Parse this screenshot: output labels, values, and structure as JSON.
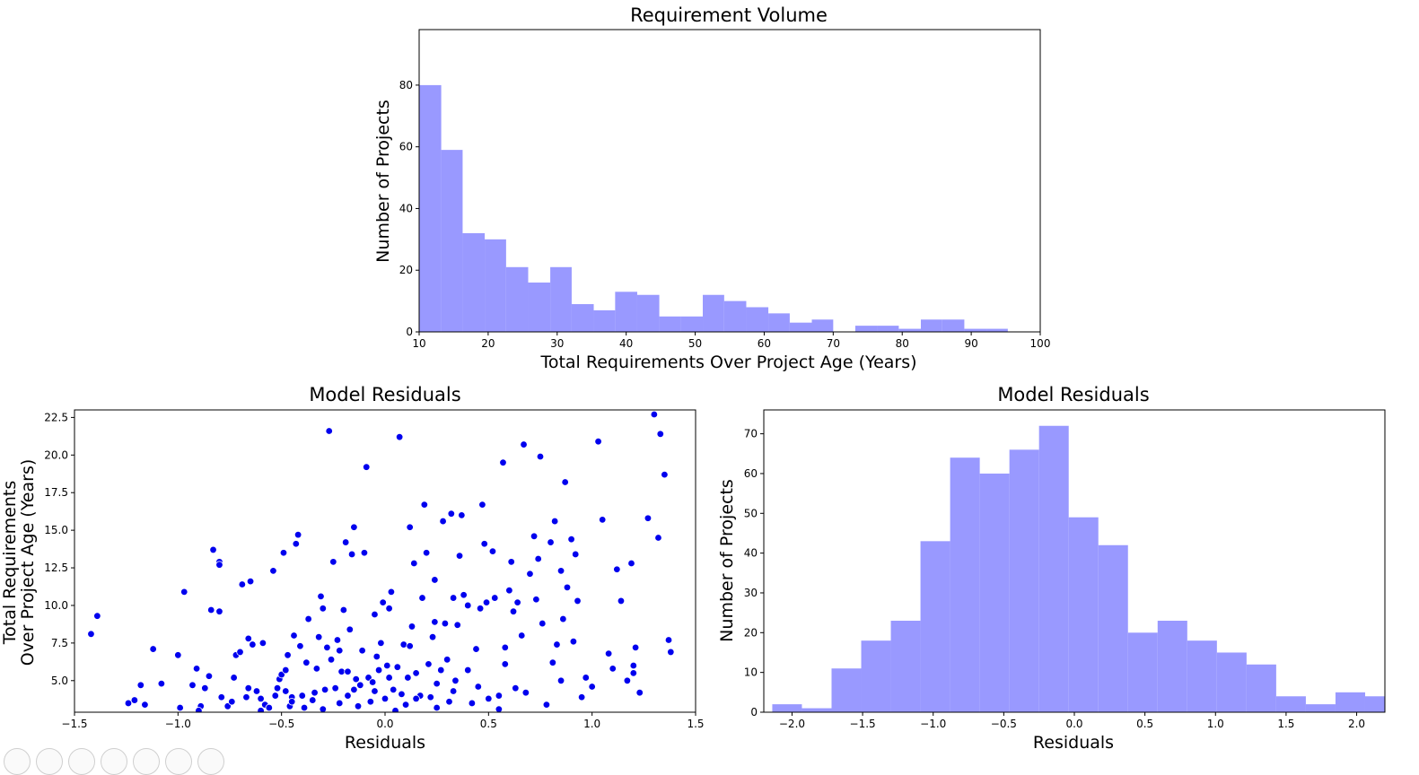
{
  "chart_data": [
    {
      "type": "histogram",
      "title": "Requirement Volume",
      "xlabel": "Total Requirements Over Project Age (Years)",
      "ylabel": "Number of Projects",
      "xlim": [
        10,
        100
      ],
      "ylim": [
        0,
        98
      ],
      "xticks": [
        10,
        20,
        30,
        40,
        50,
        60,
        70,
        80,
        90,
        100
      ],
      "yticks": [
        0,
        20,
        40,
        60,
        80
      ],
      "bar_color": "#9999ff",
      "bins": [
        {
          "x0": 10.0,
          "x1": 13.2,
          "count": 80
        },
        {
          "x0": 13.2,
          "x1": 16.3,
          "count": 59
        },
        {
          "x0": 16.3,
          "x1": 19.5,
          "count": 32
        },
        {
          "x0": 19.5,
          "x1": 22.6,
          "count": 30
        },
        {
          "x0": 22.6,
          "x1": 25.8,
          "count": 21
        },
        {
          "x0": 25.8,
          "x1": 29.0,
          "count": 16
        },
        {
          "x0": 29.0,
          "x1": 32.1,
          "count": 21
        },
        {
          "x0": 32.1,
          "x1": 35.3,
          "count": 9
        },
        {
          "x0": 35.3,
          "x1": 38.4,
          "count": 7
        },
        {
          "x0": 38.4,
          "x1": 41.6,
          "count": 13
        },
        {
          "x0": 41.6,
          "x1": 44.8,
          "count": 12
        },
        {
          "x0": 44.8,
          "x1": 47.9,
          "count": 5
        },
        {
          "x0": 47.9,
          "x1": 51.1,
          "count": 5
        },
        {
          "x0": 51.1,
          "x1": 54.2,
          "count": 12
        },
        {
          "x0": 54.2,
          "x1": 57.4,
          "count": 10
        },
        {
          "x0": 57.4,
          "x1": 60.6,
          "count": 8
        },
        {
          "x0": 60.6,
          "x1": 63.7,
          "count": 6
        },
        {
          "x0": 63.7,
          "x1": 66.9,
          "count": 3
        },
        {
          "x0": 66.9,
          "x1": 70.0,
          "count": 4
        },
        {
          "x0": 70.0,
          "x1": 73.2,
          "count": 0
        },
        {
          "x0": 73.2,
          "x1": 76.4,
          "count": 2
        },
        {
          "x0": 76.4,
          "x1": 79.5,
          "count": 2
        },
        {
          "x0": 79.5,
          "x1": 82.7,
          "count": 1
        },
        {
          "x0": 82.7,
          "x1": 85.8,
          "count": 4
        },
        {
          "x0": 85.8,
          "x1": 89.0,
          "count": 4
        },
        {
          "x0": 89.0,
          "x1": 92.2,
          "count": 1
        },
        {
          "x0": 92.2,
          "x1": 95.3,
          "count": 1
        }
      ]
    },
    {
      "type": "scatter",
      "title": "Model Residuals",
      "xlabel": "Residuals",
      "ylabel": [
        "Total Requirements",
        "Over Project Age (Years)"
      ],
      "xlim": [
        -1.5,
        1.5
      ],
      "ylim": [
        2.9,
        23.0
      ],
      "xticks": [
        -1.5,
        -1.0,
        -0.5,
        0.0,
        0.5,
        1.0,
        1.5
      ],
      "xtick_labels": [
        "−1.5",
        "−1.0",
        "−0.5",
        "0.0",
        "0.5",
        "1.0",
        "1.5"
      ],
      "yticks": [
        5.0,
        7.5,
        10.0,
        12.5,
        15.0,
        17.5,
        20.0,
        22.5
      ],
      "ytick_labels": [
        "5.0",
        "7.5",
        "10.0",
        "12.5",
        "15.0",
        "17.5",
        "20.0",
        "22.5"
      ],
      "point_color": "#0000ee",
      "points": [
        [
          -1.42,
          8.1
        ],
        [
          -1.39,
          9.3
        ],
        [
          -1.24,
          3.5
        ],
        [
          -1.21,
          3.7
        ],
        [
          -1.18,
          4.7
        ],
        [
          -1.16,
          3.4
        ],
        [
          -1.12,
          7.1
        ],
        [
          -1.08,
          4.8
        ],
        [
          -1.0,
          6.7
        ],
        [
          -0.99,
          3.2
        ],
        [
          -0.97,
          10.9
        ],
        [
          -0.93,
          4.7
        ],
        [
          -0.91,
          5.8
        ],
        [
          -0.89,
          3.3
        ],
        [
          -0.87,
          4.5
        ],
        [
          -0.85,
          5.3
        ],
        [
          -0.84,
          9.7
        ],
        [
          -0.83,
          13.7
        ],
        [
          -0.8,
          12.9
        ],
        [
          -0.8,
          12.7
        ],
        [
          -0.8,
          9.6
        ],
        [
          -0.79,
          3.9
        ],
        [
          -0.76,
          3.3
        ],
        [
          -0.74,
          3.6
        ],
        [
          -0.73,
          5.2
        ],
        [
          -0.72,
          6.7
        ],
        [
          -0.7,
          6.9
        ],
        [
          -0.69,
          11.4
        ],
        [
          -0.67,
          3.9
        ],
        [
          -0.66,
          4.5
        ],
        [
          -0.66,
          7.8
        ],
        [
          -0.65,
          11.6
        ],
        [
          -0.64,
          7.4
        ],
        [
          -0.62,
          4.3
        ],
        [
          -0.6,
          3.8
        ],
        [
          -0.59,
          7.5
        ],
        [
          -0.58,
          3.4
        ],
        [
          -0.56,
          3.2
        ],
        [
          -0.54,
          12.3
        ],
        [
          -0.53,
          4.0
        ],
        [
          -0.52,
          4.5
        ],
        [
          -0.51,
          5.1
        ],
        [
          -0.5,
          5.4
        ],
        [
          -0.49,
          13.5
        ],
        [
          -0.48,
          4.3
        ],
        [
          -0.48,
          5.7
        ],
        [
          -0.47,
          6.7
        ],
        [
          -0.46,
          3.3
        ],
        [
          -0.45,
          3.9
        ],
        [
          -0.44,
          8.0
        ],
        [
          -0.43,
          14.1
        ],
        [
          -0.42,
          14.7
        ],
        [
          -0.41,
          7.3
        ],
        [
          -0.4,
          4.0
        ],
        [
          -0.39,
          3.2
        ],
        [
          -0.37,
          9.1
        ],
        [
          -0.35,
          3.7
        ],
        [
          -0.34,
          4.2
        ],
        [
          -0.33,
          5.8
        ],
        [
          -0.32,
          7.9
        ],
        [
          -0.31,
          10.6
        ],
        [
          -0.3,
          9.8
        ],
        [
          -0.29,
          4.4
        ],
        [
          -0.28,
          7.2
        ],
        [
          -0.27,
          21.6
        ],
        [
          -0.26,
          6.4
        ],
        [
          -0.25,
          12.9
        ],
        [
          -0.24,
          4.5
        ],
        [
          -0.23,
          7.7
        ],
        [
          -0.22,
          3.5
        ],
        [
          -0.21,
          5.6
        ],
        [
          -0.2,
          9.7
        ],
        [
          -0.19,
          14.2
        ],
        [
          -0.18,
          4.0
        ],
        [
          -0.17,
          8.4
        ],
        [
          -0.16,
          13.4
        ],
        [
          -0.15,
          15.2
        ],
        [
          -0.14,
          5.1
        ],
        [
          -0.13,
          3.3
        ],
        [
          -0.12,
          4.7
        ],
        [
          -0.11,
          7.0
        ],
        [
          -0.1,
          13.5
        ],
        [
          -0.09,
          19.2
        ],
        [
          -0.08,
          5.2
        ],
        [
          -0.07,
          3.6
        ],
        [
          -0.06,
          4.9
        ],
        [
          -0.05,
          4.3
        ],
        [
          -0.04,
          6.6
        ],
        [
          -0.03,
          5.7
        ],
        [
          -0.02,
          7.5
        ],
        [
          -0.01,
          10.2
        ],
        [
          0.0,
          3.8
        ],
        [
          0.01,
          6.0
        ],
        [
          0.02,
          9.8
        ],
        [
          0.03,
          10.9
        ],
        [
          0.04,
          4.4
        ],
        [
          0.06,
          5.9
        ],
        [
          0.07,
          21.2
        ],
        [
          0.08,
          4.1
        ],
        [
          0.09,
          7.4
        ],
        [
          0.1,
          3.4
        ],
        [
          0.11,
          5.2
        ],
        [
          0.12,
          15.2
        ],
        [
          0.13,
          8.6
        ],
        [
          0.14,
          12.8
        ],
        [
          0.15,
          5.5
        ],
        [
          0.17,
          4.0
        ],
        [
          0.18,
          10.5
        ],
        [
          0.19,
          16.7
        ],
        [
          0.2,
          13.5
        ],
        [
          0.21,
          6.1
        ],
        [
          0.22,
          3.9
        ],
        [
          0.23,
          7.9
        ],
        [
          0.24,
          11.7
        ],
        [
          0.25,
          4.8
        ],
        [
          0.27,
          5.7
        ],
        [
          0.28,
          15.6
        ],
        [
          0.29,
          8.8
        ],
        [
          0.3,
          6.4
        ],
        [
          0.31,
          3.6
        ],
        [
          0.32,
          16.1
        ],
        [
          0.33,
          10.5
        ],
        [
          0.34,
          5.0
        ],
        [
          0.35,
          8.7
        ],
        [
          0.36,
          13.3
        ],
        [
          0.37,
          16.0
        ],
        [
          0.38,
          10.7
        ],
        [
          0.4,
          5.7
        ],
        [
          0.42,
          3.5
        ],
        [
          0.44,
          7.1
        ],
        [
          0.46,
          9.8
        ],
        [
          0.47,
          16.7
        ],
        [
          0.48,
          14.1
        ],
        [
          0.49,
          10.2
        ],
        [
          0.5,
          3.8
        ],
        [
          0.52,
          13.6
        ],
        [
          0.53,
          10.5
        ],
        [
          0.55,
          4.0
        ],
        [
          0.57,
          19.5
        ],
        [
          0.58,
          6.1
        ],
        [
          0.6,
          11.0
        ],
        [
          0.61,
          12.9
        ],
        [
          0.62,
          9.6
        ],
        [
          0.63,
          4.5
        ],
        [
          0.64,
          10.2
        ],
        [
          0.66,
          8.0
        ],
        [
          0.67,
          20.7
        ],
        [
          0.7,
          12.1
        ],
        [
          0.72,
          14.6
        ],
        [
          0.73,
          10.4
        ],
        [
          0.74,
          13.1
        ],
        [
          0.75,
          19.9
        ],
        [
          0.76,
          8.8
        ],
        [
          0.78,
          3.4
        ],
        [
          0.8,
          14.2
        ],
        [
          0.81,
          6.2
        ],
        [
          0.82,
          15.6
        ],
        [
          0.83,
          7.4
        ],
        [
          0.85,
          12.3
        ],
        [
          0.86,
          9.1
        ],
        [
          0.87,
          18.2
        ],
        [
          0.88,
          11.2
        ],
        [
          0.9,
          14.4
        ],
        [
          0.91,
          7.6
        ],
        [
          0.92,
          13.4
        ],
        [
          0.93,
          10.3
        ],
        [
          0.95,
          3.9
        ],
        [
          0.97,
          5.2
        ],
        [
          1.0,
          4.6
        ],
        [
          1.03,
          20.9
        ],
        [
          1.05,
          15.7
        ],
        [
          1.08,
          6.8
        ],
        [
          1.1,
          5.8
        ],
        [
          1.12,
          12.4
        ],
        [
          1.14,
          10.3
        ],
        [
          1.17,
          5.0
        ],
        [
          1.19,
          12.8
        ],
        [
          1.2,
          5.5
        ],
        [
          1.21,
          7.2
        ],
        [
          1.23,
          4.2
        ],
        [
          1.27,
          15.8
        ],
        [
          1.3,
          22.7
        ],
        [
          1.32,
          14.5
        ],
        [
          1.33,
          21.4
        ],
        [
          1.35,
          18.7
        ],
        [
          1.37,
          7.7
        ],
        [
          1.38,
          6.9
        ],
        [
          -0.9,
          3.0
        ],
        [
          -0.6,
          3.0
        ],
        [
          -0.3,
          3.1
        ],
        [
          0.05,
          3.0
        ],
        [
          0.25,
          3.2
        ],
        [
          0.55,
          3.1
        ],
        [
          0.85,
          5.0
        ],
        [
          1.2,
          6.0
        ],
        [
          0.15,
          3.8
        ],
        [
          -0.15,
          4.4
        ],
        [
          0.45,
          4.6
        ],
        [
          -0.45,
          3.6
        ],
        [
          0.68,
          4.2
        ],
        [
          -0.18,
          5.6
        ],
        [
          0.02,
          5.2
        ],
        [
          0.33,
          4.3
        ],
        [
          -0.38,
          6.2
        ],
        [
          0.12,
          7.3
        ],
        [
          -0.05,
          9.4
        ],
        [
          0.24,
          8.9
        ],
        [
          0.58,
          7.2
        ],
        [
          -0.22,
          7.0
        ],
        [
          0.4,
          10.0
        ]
      ]
    },
    {
      "type": "histogram",
      "title": "Model Residuals",
      "xlabel": "Residuals",
      "ylabel": "Number of Projects",
      "xlim": [
        -2.2,
        2.2
      ],
      "ylim": [
        0,
        76
      ],
      "xticks": [
        -2.0,
        -1.5,
        -1.0,
        -0.5,
        0.0,
        0.5,
        1.0,
        1.5,
        2.0
      ],
      "xtick_labels": [
        "−2.0",
        "−1.5",
        "−1.0",
        "−0.5",
        "0.0",
        "0.5",
        "1.0",
        "1.5",
        "2.0"
      ],
      "yticks": [
        0,
        10,
        20,
        30,
        40,
        50,
        60,
        70
      ],
      "bar_color": "#9999ff",
      "bins": [
        {
          "x0": -2.14,
          "x1": -1.93,
          "count": 2
        },
        {
          "x0": -1.93,
          "x1": -1.72,
          "count": 1
        },
        {
          "x0": -1.72,
          "x1": -1.51,
          "count": 11
        },
        {
          "x0": -1.51,
          "x1": -1.3,
          "count": 18
        },
        {
          "x0": -1.3,
          "x1": -1.09,
          "count": 23
        },
        {
          "x0": -1.09,
          "x1": -0.88,
          "count": 43
        },
        {
          "x0": -0.88,
          "x1": -0.67,
          "count": 64
        },
        {
          "x0": -0.67,
          "x1": -0.46,
          "count": 60
        },
        {
          "x0": -0.46,
          "x1": -0.25,
          "count": 66
        },
        {
          "x0": -0.25,
          "x1": -0.04,
          "count": 72
        },
        {
          "x0": -0.04,
          "x1": 0.17,
          "count": 49
        },
        {
          "x0": 0.17,
          "x1": 0.38,
          "count": 42
        },
        {
          "x0": 0.38,
          "x1": 0.59,
          "count": 20
        },
        {
          "x0": 0.59,
          "x1": 0.8,
          "count": 23
        },
        {
          "x0": 0.8,
          "x1": 1.01,
          "count": 18
        },
        {
          "x0": 1.01,
          "x1": 1.22,
          "count": 15
        },
        {
          "x0": 1.22,
          "x1": 1.43,
          "count": 12
        },
        {
          "x0": 1.43,
          "x1": 1.64,
          "count": 4
        },
        {
          "x0": 1.64,
          "x1": 1.85,
          "count": 2
        },
        {
          "x0": 1.85,
          "x1": 2.06,
          "count": 5
        },
        {
          "x0": 2.06,
          "x1": 2.27,
          "count": 4
        }
      ]
    }
  ],
  "toolbar": {
    "icons": [
      "home-icon",
      "back-icon",
      "forward-icon",
      "pan-icon",
      "zoom-icon",
      "configure-icon",
      "save-icon"
    ]
  }
}
